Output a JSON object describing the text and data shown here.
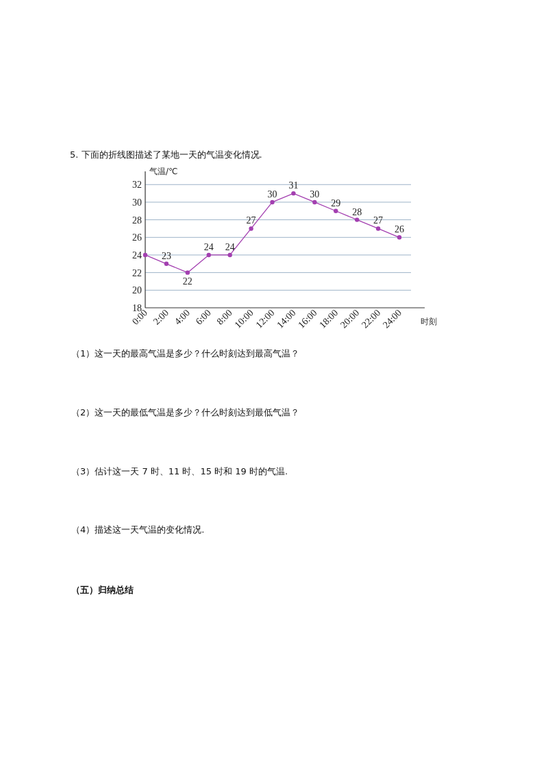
{
  "chart_data": {
    "type": "line",
    "title": "5. 下面的折线图描述了某地一天的气温变化情况.",
    "ylabel": "气温/℃",
    "xlabel": "时刻",
    "categories": [
      "0:00",
      "2:00",
      "4:00",
      "6:00",
      "8:00",
      "10:00",
      "12:00",
      "14:00",
      "16:00",
      "18:00",
      "20:00",
      "22:00",
      "24:00"
    ],
    "series": [
      {
        "color": "#a33fb0",
        "values": [
          24,
          23,
          22,
          24,
          24,
          27,
          30,
          31,
          30,
          29,
          28,
          27,
          26
        ],
        "value_labels": [
          null,
          "23",
          "22",
          "24",
          "24",
          "27",
          "30",
          "31",
          "30",
          "29",
          "28",
          "27",
          "26"
        ]
      }
    ],
    "ylim": [
      18,
      33.5
    ],
    "yticks": [
      18,
      20,
      22,
      24,
      26,
      28,
      30,
      32
    ],
    "grid": "y",
    "marker": "circle",
    "line_style": "solid",
    "annotations": [
      "（1）这一天的最高气温是多少？什么时刻达到最高气温？",
      "（2）这一天的最低气温是多少？什么时刻达到最低气温？",
      "（3）估计这一天 7 时、11 时、15 时和 19 时的气温.",
      "（4）描述这一天气温的变化情况.",
      "（五）归纳总结"
    ]
  }
}
